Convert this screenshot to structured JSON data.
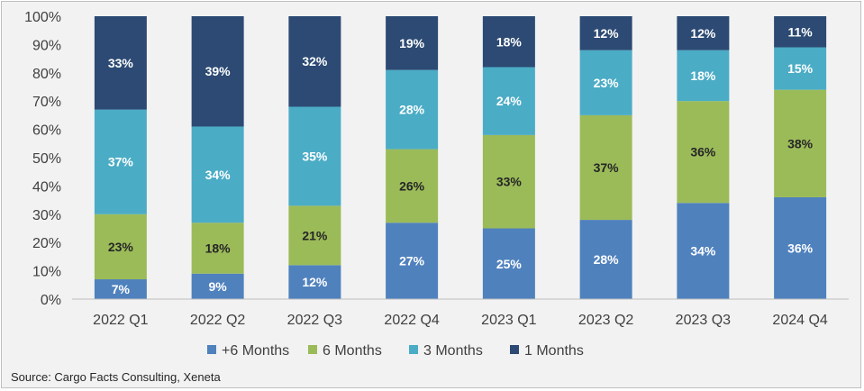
{
  "chart_data": {
    "type": "bar",
    "stacked": true,
    "percent": true,
    "categories": [
      "2022 Q1",
      "2022 Q2",
      "2022 Q3",
      "2022 Q4",
      "2023 Q1",
      "2023 Q2",
      "2023 Q3",
      "2024 Q4"
    ],
    "series": [
      {
        "name": "+6 Months",
        "color": "#4f81bd",
        "label_color": "#ffffff",
        "values": [
          7,
          9,
          12,
          27,
          25,
          28,
          34,
          36
        ]
      },
      {
        "name": "6 Months",
        "color": "#9bbb59",
        "label_color": "#262626",
        "values": [
          23,
          18,
          21,
          26,
          33,
          37,
          36,
          38
        ]
      },
      {
        "name": "3 Months",
        "color": "#4bacc6",
        "label_color": "#ffffff",
        "values": [
          37,
          34,
          35,
          28,
          24,
          23,
          18,
          15
        ]
      },
      {
        "name": "1 Months",
        "color": "#2c4a73",
        "label_color": "#ffffff",
        "values": [
          33,
          39,
          32,
          19,
          18,
          12,
          12,
          11
        ]
      }
    ],
    "ylim": [
      0,
      100
    ],
    "yticks": [
      "0%",
      "10%",
      "20%",
      "30%",
      "40%",
      "50%",
      "60%",
      "70%",
      "80%",
      "90%",
      "100%"
    ],
    "legend_position": "bottom",
    "grid": false
  },
  "source": "Source: Cargo Facts Consulting, Xeneta"
}
